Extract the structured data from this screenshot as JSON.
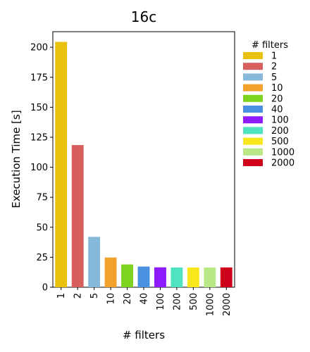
{
  "chart_data": {
    "type": "bar",
    "title": "16c",
    "xlabel": "# filters",
    "ylabel": "Execution Time [s]",
    "categories": [
      "1",
      "2",
      "5",
      "10",
      "20",
      "40",
      "100",
      "200",
      "500",
      "1000",
      "2000"
    ],
    "values": [
      204.5,
      118.5,
      42.0,
      24.8,
      19.0,
      17.2,
      16.6,
      16.5,
      16.5,
      16.5,
      16.5
    ],
    "colors": [
      "#e8c10a",
      "#d95f5f",
      "#86b9d9",
      "#f2a22a",
      "#7ed321",
      "#4a90e2",
      "#8e1aff",
      "#50e3c2",
      "#f8e71c",
      "#b8e986",
      "#d0021b"
    ],
    "ylim": [
      0,
      213
    ],
    "yticks": [
      0,
      25,
      50,
      75,
      100,
      125,
      150,
      175,
      200
    ],
    "grid": false,
    "legend": {
      "title": "# filters",
      "placement": "outside-right",
      "entries": [
        "1",
        "2",
        "5",
        "10",
        "20",
        "40",
        "100",
        "200",
        "500",
        "1000",
        "2000"
      ]
    }
  }
}
